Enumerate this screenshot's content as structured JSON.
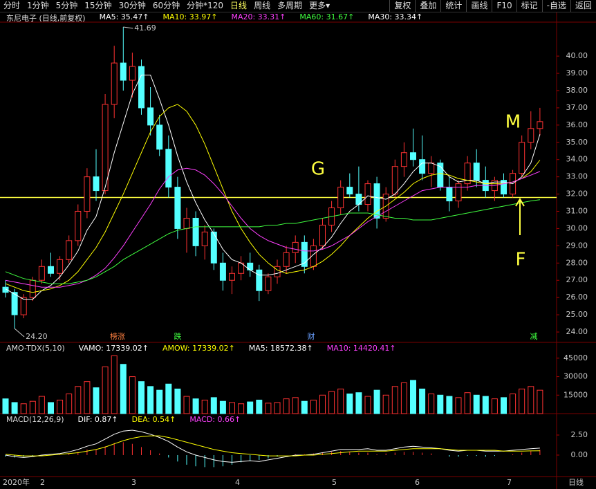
{
  "toolbar": {
    "left": [
      "分时",
      "1分钟",
      "5分钟",
      "15分钟",
      "30分钟",
      "60分钟",
      "分钟*120",
      "日线",
      "周线",
      "多周期",
      "更多▾"
    ],
    "right": [
      "复权",
      "叠加",
      "统计",
      "画线",
      "F10",
      "标记",
      "-自选",
      "返回"
    ]
  },
  "x_labels": [
    "2020年",
    "2",
    "3",
    "4",
    "5",
    "6",
    "7"
  ],
  "period_label": "日线",
  "chart_data": [
    {
      "type": "candlestick",
      "title": "东尼电子 (日线,前复权)",
      "readouts": [
        {
          "text": "MA5: 35.47↑",
          "color": "#ffffff"
        },
        {
          "text": "MA10: 33.97↑",
          "color": "#ffff00"
        },
        {
          "text": "MA20: 33.31↑",
          "color": "#ff40ff"
        },
        {
          "text": "MA60: 31.67↑",
          "color": "#40ff40"
        },
        {
          "text": "MA30: 33.34↑",
          "color": "#ffffff"
        }
      ],
      "up_color": "#ff3232",
      "down_color": "#54ffff",
      "candles": [
        [
          26.6,
          27.0,
          26.0,
          26.3
        ],
        [
          26.3,
          26.5,
          24.2,
          25.0
        ],
        [
          25.0,
          26.2,
          24.8,
          26.0
        ],
        [
          26.0,
          27.2,
          25.8,
          27.0
        ],
        [
          27.0,
          28.2,
          26.8,
          27.8
        ],
        [
          27.8,
          28.6,
          27.2,
          27.4
        ],
        [
          27.4,
          28.4,
          27.0,
          28.2
        ],
        [
          28.2,
          29.6,
          28.0,
          29.3
        ],
        [
          29.3,
          31.4,
          29.0,
          31.0
        ],
        [
          31.0,
          33.5,
          30.6,
          33.0
        ],
        [
          33.0,
          34.6,
          31.6,
          32.2
        ],
        [
          32.2,
          37.8,
          32.0,
          37.2
        ],
        [
          37.2,
          40.6,
          36.4,
          39.6
        ],
        [
          39.6,
          41.69,
          38.0,
          38.6
        ],
        [
          38.6,
          40.2,
          37.6,
          39.4
        ],
        [
          39.4,
          39.8,
          36.6,
          37.0
        ],
        [
          37.0,
          38.2,
          35.4,
          36.0
        ],
        [
          36.0,
          36.6,
          34.2,
          34.6
        ],
        [
          34.6,
          35.4,
          31.8,
          32.4
        ],
        [
          32.4,
          33.0,
          29.4,
          30.0
        ],
        [
          30.0,
          31.2,
          28.6,
          30.6
        ],
        [
          30.6,
          31.0,
          28.4,
          29.0
        ],
        [
          29.0,
          30.2,
          28.2,
          29.8
        ],
        [
          29.8,
          30.0,
          27.6,
          28.0
        ],
        [
          28.0,
          28.6,
          26.4,
          27.0
        ],
        [
          27.0,
          27.8,
          26.2,
          27.4
        ],
        [
          27.4,
          28.4,
          27.0,
          28.0
        ],
        [
          28.0,
          28.6,
          27.2,
          27.6
        ],
        [
          27.6,
          27.9,
          25.8,
          26.4
        ],
        [
          26.4,
          27.4,
          26.2,
          27.2
        ],
        [
          27.2,
          28.2,
          26.8,
          27.8
        ],
        [
          27.8,
          29.0,
          27.4,
          28.6
        ],
        [
          28.6,
          29.6,
          28.0,
          29.2
        ],
        [
          29.2,
          29.6,
          27.4,
          27.8
        ],
        [
          27.8,
          29.4,
          27.6,
          29.0
        ],
        [
          29.0,
          30.6,
          28.8,
          30.2
        ],
        [
          30.2,
          31.6,
          29.8,
          31.2
        ],
        [
          31.2,
          32.8,
          30.8,
          32.4
        ],
        [
          32.4,
          33.2,
          31.8,
          32.0
        ],
        [
          32.0,
          33.6,
          31.0,
          31.4
        ],
        [
          31.4,
          32.8,
          31.0,
          32.6
        ],
        [
          32.6,
          33.0,
          30.0,
          30.6
        ],
        [
          30.6,
          32.4,
          30.4,
          32.0
        ],
        [
          32.0,
          34.0,
          31.8,
          33.6
        ],
        [
          33.6,
          35.0,
          33.0,
          34.4
        ],
        [
          34.4,
          35.8,
          33.6,
          34.0
        ],
        [
          34.0,
          35.4,
          32.8,
          33.2
        ],
        [
          33.2,
          34.2,
          32.4,
          33.8
        ],
        [
          33.8,
          34.0,
          32.2,
          32.4
        ],
        [
          32.4,
          33.0,
          31.0,
          31.6
        ],
        [
          31.6,
          32.8,
          31.2,
          32.6
        ],
        [
          32.6,
          34.2,
          32.2,
          33.8
        ],
        [
          33.8,
          34.6,
          32.4,
          32.8
        ],
        [
          32.8,
          33.6,
          31.8,
          32.2
        ],
        [
          32.2,
          33.0,
          31.6,
          32.8
        ],
        [
          32.8,
          33.2,
          31.8,
          32.0
        ],
        [
          32.0,
          33.4,
          31.8,
          33.2
        ],
        [
          33.2,
          35.4,
          33.0,
          35.0
        ],
        [
          35.0,
          36.8,
          34.6,
          35.8
        ],
        [
          35.8,
          37.0,
          35.4,
          36.2
        ]
      ],
      "series": [
        {
          "name": "MA5",
          "color": "#ffffff",
          "values": [
            26.5,
            26.2,
            25.9,
            25.9,
            26.4,
            26.7,
            27.2,
            27.9,
            28.7,
            29.9,
            30.7,
            32.4,
            34.4,
            36.1,
            37.8,
            38.9,
            38.9,
            37.5,
            36.0,
            34.2,
            32.7,
            31.5,
            30.5,
            29.7,
            28.8,
            28.2,
            28.0,
            27.6,
            27.3,
            27.3,
            27.4,
            27.6,
            27.8,
            28.0,
            28.5,
            28.9,
            29.5,
            30.3,
            31.0,
            31.4,
            31.9,
            31.8,
            31.7,
            32.0,
            32.6,
            33.3,
            33.8,
            33.8,
            33.6,
            33.0,
            32.7,
            32.8,
            32.8,
            32.6,
            32.7,
            32.7,
            32.6,
            33.0,
            33.8,
            35.47
          ]
        },
        {
          "name": "MA10",
          "color": "#ffff00",
          "values": [
            26.8,
            26.6,
            26.4,
            26.3,
            26.4,
            26.5,
            26.7,
            27.0,
            27.5,
            28.2,
            28.9,
            29.8,
            30.9,
            32.0,
            33.2,
            34.4,
            35.6,
            36.5,
            37.0,
            37.2,
            36.8,
            36.0,
            34.9,
            33.6,
            32.3,
            31.0,
            30.0,
            29.2,
            28.5,
            28.0,
            27.6,
            27.4,
            27.5,
            27.6,
            27.8,
            28.1,
            28.5,
            29.0,
            29.6,
            30.1,
            30.6,
            31.0,
            31.3,
            31.7,
            32.1,
            32.6,
            32.9,
            33.1,
            33.2,
            33.1,
            32.9,
            32.8,
            32.7,
            32.6,
            32.6,
            32.6,
            32.7,
            32.9,
            33.3,
            33.97
          ]
        },
        {
          "name": "MA20",
          "color": "#ff40ff",
          "values": [
            27.0,
            26.9,
            26.8,
            26.7,
            26.6,
            26.6,
            26.6,
            26.7,
            26.8,
            27.0,
            27.3,
            27.7,
            28.3,
            29.0,
            29.8,
            30.6,
            31.4,
            32.3,
            33.0,
            33.4,
            33.5,
            33.4,
            33.1,
            32.6,
            32.0,
            31.3,
            30.6,
            30.0,
            29.6,
            29.3,
            29.1,
            28.9,
            28.8,
            28.7,
            28.7,
            28.8,
            29.0,
            29.3,
            29.6,
            30.0,
            30.4,
            30.7,
            31.0,
            31.3,
            31.6,
            31.9,
            32.2,
            32.3,
            32.4,
            32.4,
            32.4,
            32.4,
            32.5,
            32.5,
            32.5,
            32.6,
            32.7,
            32.9,
            33.1,
            33.31
          ]
        },
        {
          "name": "MA60",
          "color": "#40ff40",
          "values": [
            27.5,
            27.3,
            27.1,
            27.0,
            26.9,
            26.8,
            26.8,
            26.8,
            26.9,
            27.0,
            27.2,
            27.5,
            27.8,
            28.2,
            28.5,
            28.8,
            29.1,
            29.4,
            29.7,
            29.9,
            30.0,
            30.1,
            30.1,
            30.1,
            30.1,
            30.1,
            30.1,
            30.1,
            30.1,
            30.2,
            30.2,
            30.3,
            30.3,
            30.4,
            30.5,
            30.6,
            30.7,
            30.8,
            30.9,
            30.9,
            30.9,
            30.8,
            30.7,
            30.6,
            30.6,
            30.5,
            30.5,
            30.5,
            30.6,
            30.7,
            30.8,
            30.9,
            31.0,
            31.1,
            31.2,
            31.3,
            31.4,
            31.5,
            31.6,
            31.67
          ]
        }
      ],
      "ylim": [
        23.48,
        41.97
      ],
      "yticks": [
        {
          "value": 24,
          "label": "24.00"
        },
        {
          "value": 25,
          "label": "25.00"
        },
        {
          "value": 26,
          "label": "26.00"
        },
        {
          "value": 27,
          "label": "27.00"
        },
        {
          "value": 28,
          "label": "28.00"
        },
        {
          "value": 29,
          "label": "29.00"
        },
        {
          "value": 30,
          "label": "30.00"
        },
        {
          "value": 31,
          "label": "31.00"
        },
        {
          "value": 32,
          "label": "32.00"
        },
        {
          "value": 33,
          "label": "33.00"
        },
        {
          "value": 34,
          "label": "34.00"
        },
        {
          "value": 35,
          "label": "35.00"
        },
        {
          "value": 36,
          "label": "36.00"
        },
        {
          "value": 37,
          "label": "37.00"
        },
        {
          "value": 38,
          "label": "38.00"
        },
        {
          "value": 39,
          "label": "39.00"
        },
        {
          "value": 40,
          "label": "40.00"
        }
      ],
      "hline": 31.8,
      "hline_color": "#ffff40",
      "high_mark": {
        "value": 41.69,
        "label": "41.69"
      },
      "low_mark": {
        "value": 24.2,
        "label": "24.20"
      },
      "annotations": [
        "G",
        "M",
        "F"
      ],
      "events": [
        "榜涨",
        "跌",
        "财",
        "减"
      ]
    },
    {
      "type": "bar",
      "title": "AMO-TDX(5,10)",
      "readouts": [
        {
          "text": "VAMO: 17339.02↑",
          "color": "#ffffff"
        },
        {
          "text": "AMOW: 17339.02↑",
          "color": "#ffff00"
        },
        {
          "text": "MA5: 18572.38↑",
          "color": "#ffffff"
        },
        {
          "text": "MA10: 14420.41↑",
          "color": "#ff40ff"
        }
      ],
      "values": [
        12000,
        9000,
        8000,
        10000,
        14000,
        9000,
        11000,
        16000,
        22000,
        26000,
        21000,
        38000,
        47000,
        40000,
        30000,
        26000,
        22000,
        19000,
        24000,
        20000,
        14000,
        12000,
        11000,
        13000,
        10000,
        9000,
        8000,
        9500,
        11000,
        8500,
        9000,
        12000,
        13000,
        10000,
        11000,
        15000,
        18000,
        20000,
        16000,
        17000,
        14000,
        19000,
        15000,
        22000,
        25000,
        27000,
        20000,
        16000,
        15000,
        14000,
        13000,
        17000,
        15000,
        14000,
        12000,
        13000,
        16000,
        20000,
        22000,
        19000
      ],
      "ylim": [
        0,
        56700
      ],
      "yticks": [
        15000,
        30000,
        45000
      ]
    },
    {
      "type": "macd",
      "title": "MACD(12,26,9)",
      "readouts": [
        {
          "text": "DIF: 0.87↑",
          "color": "#ffffff"
        },
        {
          "text": "DEA: 0.54↑",
          "color": "#ffff00"
        },
        {
          "text": "MACD: 0.66↑",
          "color": "#ff40ff"
        }
      ],
      "histogram": [
        -0.2,
        -0.3,
        -0.2,
        -0.1,
        0.0,
        0.0,
        0.1,
        0.2,
        0.4,
        0.7,
        0.7,
        1.1,
        1.5,
        1.6,
        1.4,
        1.0,
        0.6,
        0.2,
        -0.3,
        -0.8,
        -1.2,
        -1.4,
        -1.5,
        -1.5,
        -1.4,
        -1.2,
        -0.9,
        -0.7,
        -0.6,
        -0.4,
        -0.2,
        0.0,
        0.1,
        0.1,
        0.2,
        0.3,
        0.4,
        0.5,
        0.4,
        0.3,
        0.3,
        0.1,
        0.2,
        0.3,
        0.4,
        0.4,
        0.3,
        0.2,
        0.0,
        -0.2,
        -0.2,
        -0.1,
        -0.1,
        -0.2,
        -0.1,
        0.0,
        0.1,
        0.3,
        0.5,
        0.66
      ],
      "series": [
        {
          "name": "DIF",
          "color": "#ffffff",
          "values": [
            0.0,
            -0.2,
            -0.3,
            -0.2,
            0.0,
            0.1,
            0.2,
            0.4,
            0.7,
            1.1,
            1.4,
            2.0,
            2.6,
            3.0,
            3.1,
            2.9,
            2.6,
            2.2,
            1.7,
            1.0,
            0.4,
            0.0,
            -0.3,
            -0.6,
            -0.8,
            -0.9,
            -0.8,
            -0.7,
            -0.8,
            -0.6,
            -0.4,
            -0.2,
            0.0,
            0.0,
            0.1,
            0.3,
            0.5,
            0.7,
            0.7,
            0.7,
            0.8,
            0.6,
            0.6,
            0.8,
            1.0,
            1.1,
            1.0,
            0.9,
            0.8,
            0.6,
            0.5,
            0.6,
            0.6,
            0.5,
            0.5,
            0.5,
            0.6,
            0.7,
            0.8,
            0.87
          ]
        },
        {
          "name": "DEA",
          "color": "#ffff00",
          "values": [
            0.1,
            0.0,
            -0.1,
            -0.1,
            -0.1,
            0.0,
            0.1,
            0.2,
            0.3,
            0.5,
            0.7,
            1.0,
            1.4,
            1.8,
            2.1,
            2.3,
            2.4,
            2.4,
            2.2,
            1.9,
            1.6,
            1.3,
            1.0,
            0.7,
            0.5,
            0.3,
            0.2,
            0.1,
            0.0,
            -0.1,
            -0.1,
            -0.1,
            -0.1,
            0.0,
            0.0,
            0.1,
            0.2,
            0.3,
            0.4,
            0.5,
            0.5,
            0.5,
            0.5,
            0.6,
            0.7,
            0.8,
            0.8,
            0.8,
            0.8,
            0.7,
            0.6,
            0.6,
            0.6,
            0.6,
            0.6,
            0.5,
            0.5,
            0.5,
            0.52,
            0.54
          ]
        }
      ],
      "ylim": [
        -2.59,
        5.0
      ],
      "yticks": [
        {
          "value": 0,
          "label": "0.00"
        },
        {
          "value": 2.5,
          "label": "2.50"
        }
      ]
    }
  ]
}
